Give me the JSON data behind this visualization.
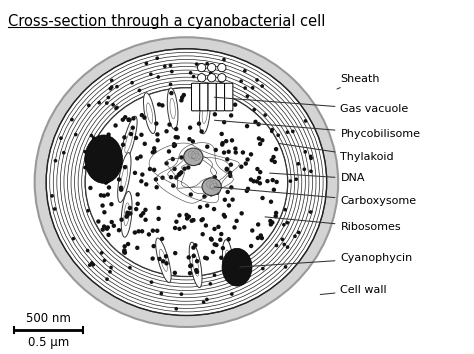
{
  "title": "Cross-section through a cyanobacterial cell",
  "title_fontsize": 10.5,
  "bg_color": "#ffffff",
  "labels": [
    "Sheath",
    "Gas vacuole",
    "Phycobilisome",
    "Thylakoid",
    "DNA",
    "Carboxysome",
    "Ribosomes",
    "Cyanophycin",
    "Cell wall"
  ],
  "scale_bar_label1": "500 nm",
  "scale_bar_label2": "0.5 μm"
}
